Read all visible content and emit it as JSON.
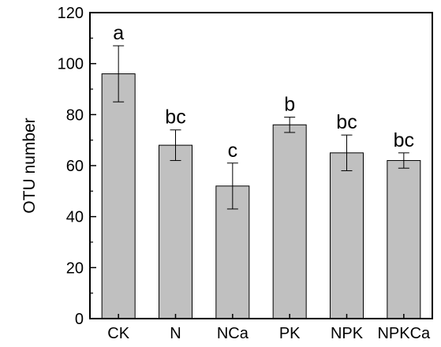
{
  "chart_data": {
    "type": "bar",
    "title": "",
    "xlabel": "",
    "ylabel": "OTU number",
    "ylim": [
      0,
      120
    ],
    "yticks": [
      0,
      20,
      40,
      60,
      80,
      100,
      120
    ],
    "categories": [
      "CK",
      "N",
      "NCa",
      "PK",
      "NPK",
      "NPKCa"
    ],
    "values": [
      96,
      68,
      52,
      76,
      65,
      62
    ],
    "error_upper": [
      107,
      74,
      61,
      79,
      72,
      65
    ],
    "error_lower": [
      85,
      62,
      43,
      73,
      58,
      59
    ],
    "significance_labels": [
      "a",
      "bc",
      "c",
      "b",
      "bc",
      "bc"
    ],
    "bar_color": "#c0c0c0",
    "grid": false,
    "legend": "none"
  }
}
